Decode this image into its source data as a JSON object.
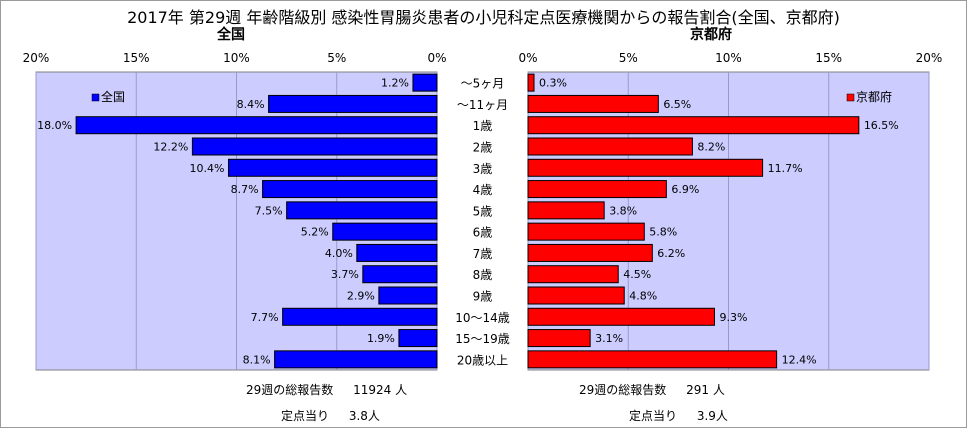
{
  "title": "2017年 第29週 年齢階級別 感染性胃腸炎患者の小児科定点医療機関からの報告割合(全国、京都府)",
  "panels": {
    "left_header": "全国",
    "right_header": "京都府"
  },
  "stats": {
    "national": {
      "total_label": "29週の総報告数",
      "total_value": "11924 人",
      "per_site_label": "定点当り",
      "per_site_value": "3.8人"
    },
    "kyoto": {
      "total_label": "29週の総報告数",
      "total_value": "291 人",
      "per_site_label": "定点当り",
      "per_site_value": "3.9人"
    }
  },
  "colors": {
    "national_bar": "#0000ff",
    "kyoto_bar": "#ff0000",
    "plot_bg": "#ccccff",
    "bar_outline": "#000000"
  },
  "chart_data": [
    {
      "type": "bar",
      "orientation": "horizontal",
      "direction": "reversed",
      "title": "全国",
      "categories": [
        "～5ヶ月",
        "～11ヶ月",
        "1歳",
        "2歳",
        "3歳",
        "4歳",
        "5歳",
        "6歳",
        "7歳",
        "8歳",
        "9歳",
        "10～14歳",
        "15～19歳",
        "20歳以上"
      ],
      "series": [
        {
          "name": "全国",
          "values": [
            1.2,
            8.4,
            18.0,
            12.2,
            10.4,
            8.7,
            7.5,
            5.2,
            4.0,
            3.7,
            2.9,
            7.7,
            1.9,
            8.1
          ]
        }
      ],
      "data_labels": [
        "1.2%",
        "8.4%",
        "18.0%",
        "12.2%",
        "10.4%",
        "8.7%",
        "7.5%",
        "5.2%",
        "4.0%",
        "3.7%",
        "2.9%",
        "7.7%",
        "1.9%",
        "8.1%"
      ],
      "xlim": [
        0,
        20
      ],
      "xticks": [
        "20%",
        "15%",
        "10%",
        "5%",
        "0%"
      ],
      "legend": "top-left",
      "grid": true
    },
    {
      "type": "bar",
      "orientation": "horizontal",
      "title": "京都府",
      "categories": [
        "～5ヶ月",
        "～11ヶ月",
        "1歳",
        "2歳",
        "3歳",
        "4歳",
        "5歳",
        "6歳",
        "7歳",
        "8歳",
        "9歳",
        "10～14歳",
        "15～19歳",
        "20歳以上"
      ],
      "series": [
        {
          "name": "京都府",
          "values": [
            0.3,
            6.5,
            16.5,
            8.2,
            11.7,
            6.9,
            3.8,
            5.8,
            6.2,
            4.5,
            4.8,
            9.3,
            3.1,
            12.4
          ]
        }
      ],
      "data_labels": [
        "0.3%",
        "6.5%",
        "16.5%",
        "8.2%",
        "11.7%",
        "6.9%",
        "3.8%",
        "5.8%",
        "6.2%",
        "4.5%",
        "4.8%",
        "9.3%",
        "3.1%",
        "12.4%"
      ],
      "xlim": [
        0,
        20
      ],
      "xticks": [
        "0%",
        "5%",
        "10%",
        "15%",
        "20%"
      ],
      "legend": "top-right",
      "grid": true
    }
  ]
}
